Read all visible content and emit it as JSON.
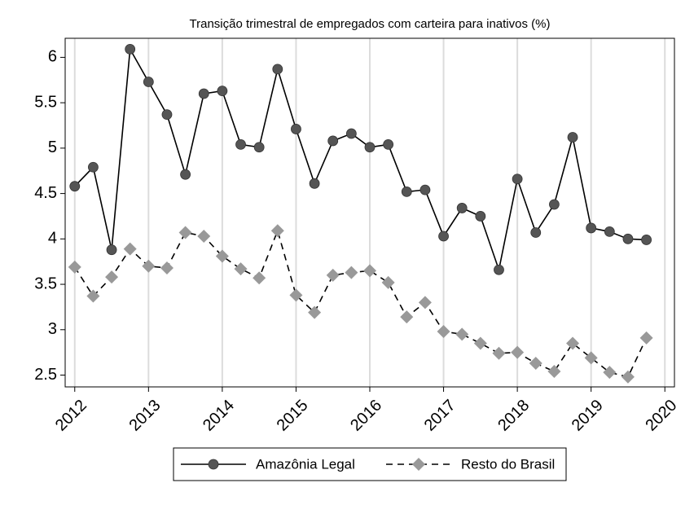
{
  "chart_data": {
    "type": "line",
    "title": "Transição trimestral de empregados com carteira para inativos (%)",
    "x": [
      2012,
      2012.25,
      2012.5,
      2012.75,
      2013,
      2013.25,
      2013.5,
      2013.75,
      2014,
      2014.25,
      2014.5,
      2014.75,
      2015,
      2015.25,
      2015.5,
      2015.75,
      2016,
      2016.25,
      2016.5,
      2016.75,
      2017,
      2017.25,
      2017.5,
      2017.75,
      2018,
      2018.25,
      2018.5,
      2018.75,
      2019,
      2019.25,
      2019.5,
      2019.75
    ],
    "series": [
      {
        "name": "Amazônia Legal",
        "color": "#555555",
        "line_color": "#000000",
        "marker": "circle",
        "line_style": "solid",
        "values": [
          4.58,
          4.79,
          3.88,
          6.09,
          5.73,
          5.37,
          4.71,
          5.6,
          5.63,
          5.04,
          5.01,
          5.87,
          5.21,
          4.61,
          5.08,
          5.16,
          5.01,
          5.04,
          4.52,
          4.54,
          4.03,
          4.34,
          4.25,
          3.66,
          4.66,
          4.07,
          4.38,
          5.12,
          4.12,
          4.08,
          4.0,
          3.99
        ]
      },
      {
        "name": "Resto do Brasil",
        "color": "#999999",
        "line_color": "#000000",
        "marker": "diamond",
        "line_style": "dashed",
        "values": [
          3.69,
          3.37,
          3.58,
          3.89,
          3.7,
          3.68,
          4.07,
          4.03,
          3.81,
          3.67,
          3.57,
          4.09,
          3.38,
          3.19,
          3.6,
          3.63,
          3.65,
          3.52,
          3.14,
          3.3,
          2.98,
          2.95,
          2.85,
          2.74,
          2.75,
          2.63,
          2.54,
          2.85,
          2.69,
          2.53,
          2.48,
          2.91
        ]
      }
    ],
    "xlim": [
      2011.87,
      2020.13
    ],
    "xticks": [
      2012,
      2013,
      2014,
      2015,
      2016,
      2017,
      2018,
      2019,
      2020
    ],
    "ylim": [
      2.37,
      6.21
    ],
    "yticks": [
      2.5,
      3,
      3.5,
      4,
      4.5,
      5,
      5.5,
      6
    ],
    "xgrid": true,
    "legend": "bottom"
  }
}
